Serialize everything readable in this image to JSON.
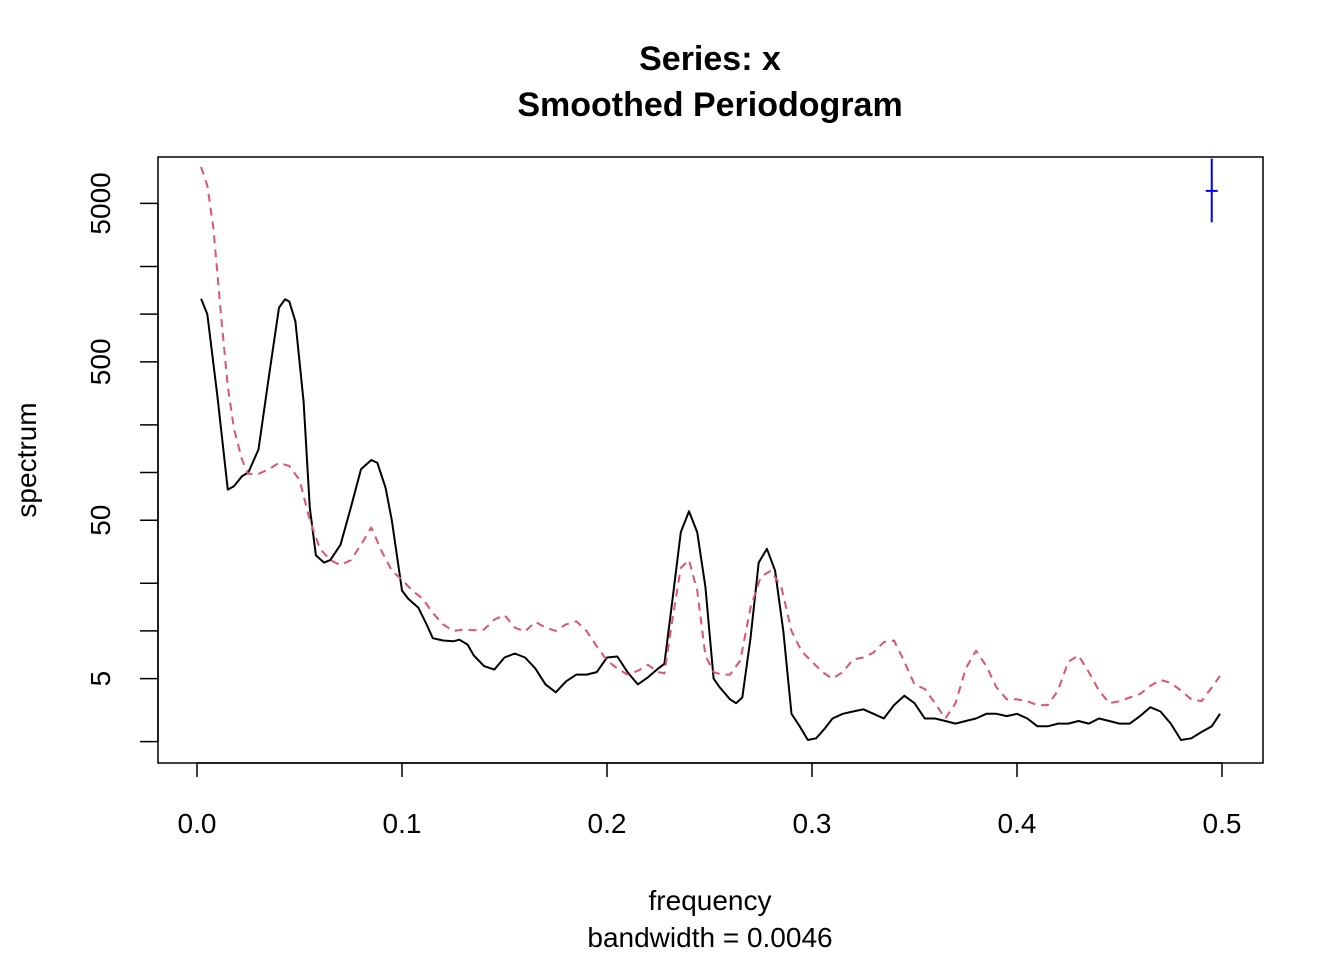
{
  "chart_data": {
    "type": "line",
    "title": "Series: x",
    "subtitle": "Smoothed Periodogram",
    "xlabel": "frequency",
    "xlabel_sub": "bandwidth = 0.0046",
    "ylabel": "spectrum",
    "xlim": [
      0,
      0.5
    ],
    "ylim": [
      1.6,
      9000
    ],
    "y_scale": "log",
    "grid": false,
    "x_ticks": [
      0.0,
      0.1,
      0.2,
      0.3,
      0.4,
      0.5
    ],
    "x_tick_labels": [
      "0.0",
      "0.1",
      "0.2",
      "0.3",
      "0.4",
      "0.5"
    ],
    "y_ticks": [
      2,
      5,
      10,
      20,
      50,
      100,
      200,
      500,
      1000,
      2000,
      5000,
      10000
    ],
    "y_tick_labels": [
      "",
      "5",
      "",
      "",
      "50",
      "",
      "",
      "500",
      "",
      "",
      "5000",
      ""
    ],
    "series": [
      {
        "style": "solid",
        "color": "#000000",
        "x": [
          0.002,
          0.005,
          0.01,
          0.015,
          0.018,
          0.022,
          0.025,
          0.03,
          0.035,
          0.04,
          0.043,
          0.045,
          0.048,
          0.052,
          0.055,
          0.058,
          0.062,
          0.065,
          0.07,
          0.075,
          0.08,
          0.085,
          0.088,
          0.092,
          0.095,
          0.1,
          0.103,
          0.108,
          0.112,
          0.115,
          0.12,
          0.125,
          0.128,
          0.132,
          0.135,
          0.14,
          0.145,
          0.15,
          0.155,
          0.16,
          0.165,
          0.17,
          0.175,
          0.18,
          0.185,
          0.19,
          0.195,
          0.2,
          0.205,
          0.21,
          0.215,
          0.22,
          0.225,
          0.228,
          0.232,
          0.236,
          0.24,
          0.244,
          0.248,
          0.252,
          0.255,
          0.26,
          0.263,
          0.266,
          0.27,
          0.274,
          0.278,
          0.282,
          0.286,
          0.29,
          0.294,
          0.298,
          0.302,
          0.306,
          0.31,
          0.315,
          0.32,
          0.325,
          0.33,
          0.335,
          0.34,
          0.345,
          0.35,
          0.355,
          0.36,
          0.365,
          0.37,
          0.375,
          0.38,
          0.385,
          0.39,
          0.395,
          0.4,
          0.405,
          0.41,
          0.415,
          0.42,
          0.425,
          0.43,
          0.435,
          0.44,
          0.445,
          0.45,
          0.455,
          0.46,
          0.465,
          0.47,
          0.475,
          0.48,
          0.485,
          0.49,
          0.495,
          0.499
        ],
        "y": [
          1250,
          1000,
          300,
          78,
          82,
          95,
          100,
          140,
          400,
          1100,
          1240,
          1200,
          900,
          280,
          60,
          30,
          27,
          28,
          35,
          60,
          105,
          120,
          115,
          80,
          50,
          18,
          16,
          14,
          11,
          9,
          8.7,
          8.6,
          8.8,
          8.2,
          7,
          6,
          5.7,
          6.8,
          7.2,
          6.8,
          5.8,
          4.6,
          4.1,
          4.8,
          5.3,
          5.3,
          5.5,
          6.8,
          6.9,
          5.5,
          4.6,
          5.1,
          5.8,
          6.2,
          16,
          42,
          57,
          42,
          19,
          5,
          4.4,
          3.7,
          3.5,
          3.8,
          9,
          27,
          33,
          24,
          10,
          3,
          2.5,
          2.05,
          2.1,
          2.4,
          2.8,
          3.0,
          3.1,
          3.2,
          3.0,
          2.8,
          3.4,
          3.9,
          3.5,
          2.8,
          2.8,
          2.7,
          2.6,
          2.7,
          2.8,
          3.0,
          3.0,
          2.9,
          3.0,
          2.8,
          2.5,
          2.5,
          2.6,
          2.6,
          2.7,
          2.6,
          2.8,
          2.7,
          2.6,
          2.6,
          2.9,
          3.3,
          3.1,
          2.6,
          2.05,
          2.1,
          2.3,
          2.5,
          3.0
        ]
      },
      {
        "style": "dashed",
        "color": "#df536b",
        "x": [
          0.002,
          0.005,
          0.008,
          0.012,
          0.015,
          0.018,
          0.022,
          0.025,
          0.03,
          0.035,
          0.04,
          0.045,
          0.05,
          0.055,
          0.06,
          0.065,
          0.07,
          0.075,
          0.08,
          0.085,
          0.09,
          0.095,
          0.1,
          0.105,
          0.11,
          0.115,
          0.12,
          0.125,
          0.13,
          0.135,
          0.14,
          0.145,
          0.15,
          0.155,
          0.16,
          0.165,
          0.17,
          0.175,
          0.18,
          0.185,
          0.19,
          0.195,
          0.2,
          0.205,
          0.21,
          0.215,
          0.22,
          0.225,
          0.228,
          0.232,
          0.236,
          0.24,
          0.244,
          0.248,
          0.252,
          0.256,
          0.26,
          0.265,
          0.27,
          0.275,
          0.28,
          0.285,
          0.29,
          0.295,
          0.3,
          0.305,
          0.31,
          0.315,
          0.32,
          0.325,
          0.33,
          0.335,
          0.34,
          0.345,
          0.35,
          0.355,
          0.36,
          0.365,
          0.37,
          0.375,
          0.38,
          0.385,
          0.39,
          0.395,
          0.4,
          0.405,
          0.41,
          0.415,
          0.42,
          0.425,
          0.43,
          0.435,
          0.44,
          0.445,
          0.45,
          0.455,
          0.46,
          0.465,
          0.47,
          0.475,
          0.48,
          0.485,
          0.49,
          0.495,
          0.499
        ],
        "y": [
          8500,
          6500,
          3500,
          900,
          350,
          190,
          120,
          98,
          98,
          105,
          115,
          110,
          90,
          50,
          33,
          28,
          26,
          28,
          35,
          45,
          32,
          24,
          21,
          18,
          16,
          13,
          11,
          10,
          10.2,
          10.1,
          10.2,
          11.8,
          12.6,
          10.5,
          9.9,
          11.4,
          10.5,
          10,
          11,
          11.5,
          10,
          8,
          6.5,
          5.8,
          5.3,
          5.6,
          6.1,
          5.5,
          5.4,
          12,
          25,
          28,
          18,
          7,
          5.5,
          5.3,
          5.3,
          6.5,
          14,
          22,
          24,
          19,
          10,
          7.4,
          6.4,
          5.5,
          5.0,
          5.5,
          6.6,
          6.8,
          7.3,
          8.5,
          8.7,
          6.4,
          4.6,
          4.3,
          3.5,
          2.8,
          3.5,
          5.8,
          7.5,
          6.0,
          4.4,
          3.7,
          3.7,
          3.6,
          3.4,
          3.4,
          4.2,
          6.4,
          7.0,
          5.5,
          4.2,
          3.5,
          3.6,
          3.8,
          4.0,
          4.5,
          4.9,
          4.7,
          4.2,
          3.7,
          3.6,
          4.4,
          5.2
        ]
      }
    ],
    "ci_bar": {
      "x": 0.495,
      "y_center": 6000,
      "y_low": 3800,
      "y_high": 9600,
      "color": "#0000ff"
    }
  }
}
